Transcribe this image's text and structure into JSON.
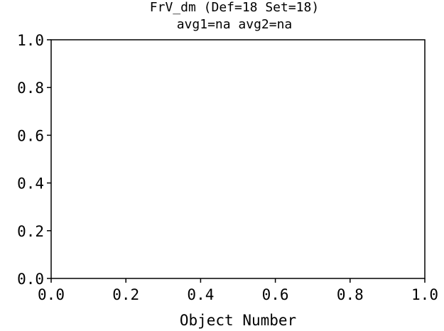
{
  "chart_data": {
    "type": "scatter",
    "title": "FrV_dm (Def=18 Set=18)",
    "subtitle": "avg1=na avg2=na",
    "xlabel": "Object Number",
    "ylabel": "",
    "xlim": [
      0.0,
      1.0
    ],
    "ylim": [
      0.0,
      1.0
    ],
    "x_ticks": [
      "0.0",
      "0.2",
      "0.4",
      "0.6",
      "0.8",
      "1.0"
    ],
    "y_ticks": [
      "0.0",
      "0.2",
      "0.4",
      "0.6",
      "0.8",
      "1.0"
    ],
    "series": [],
    "grid": false
  }
}
